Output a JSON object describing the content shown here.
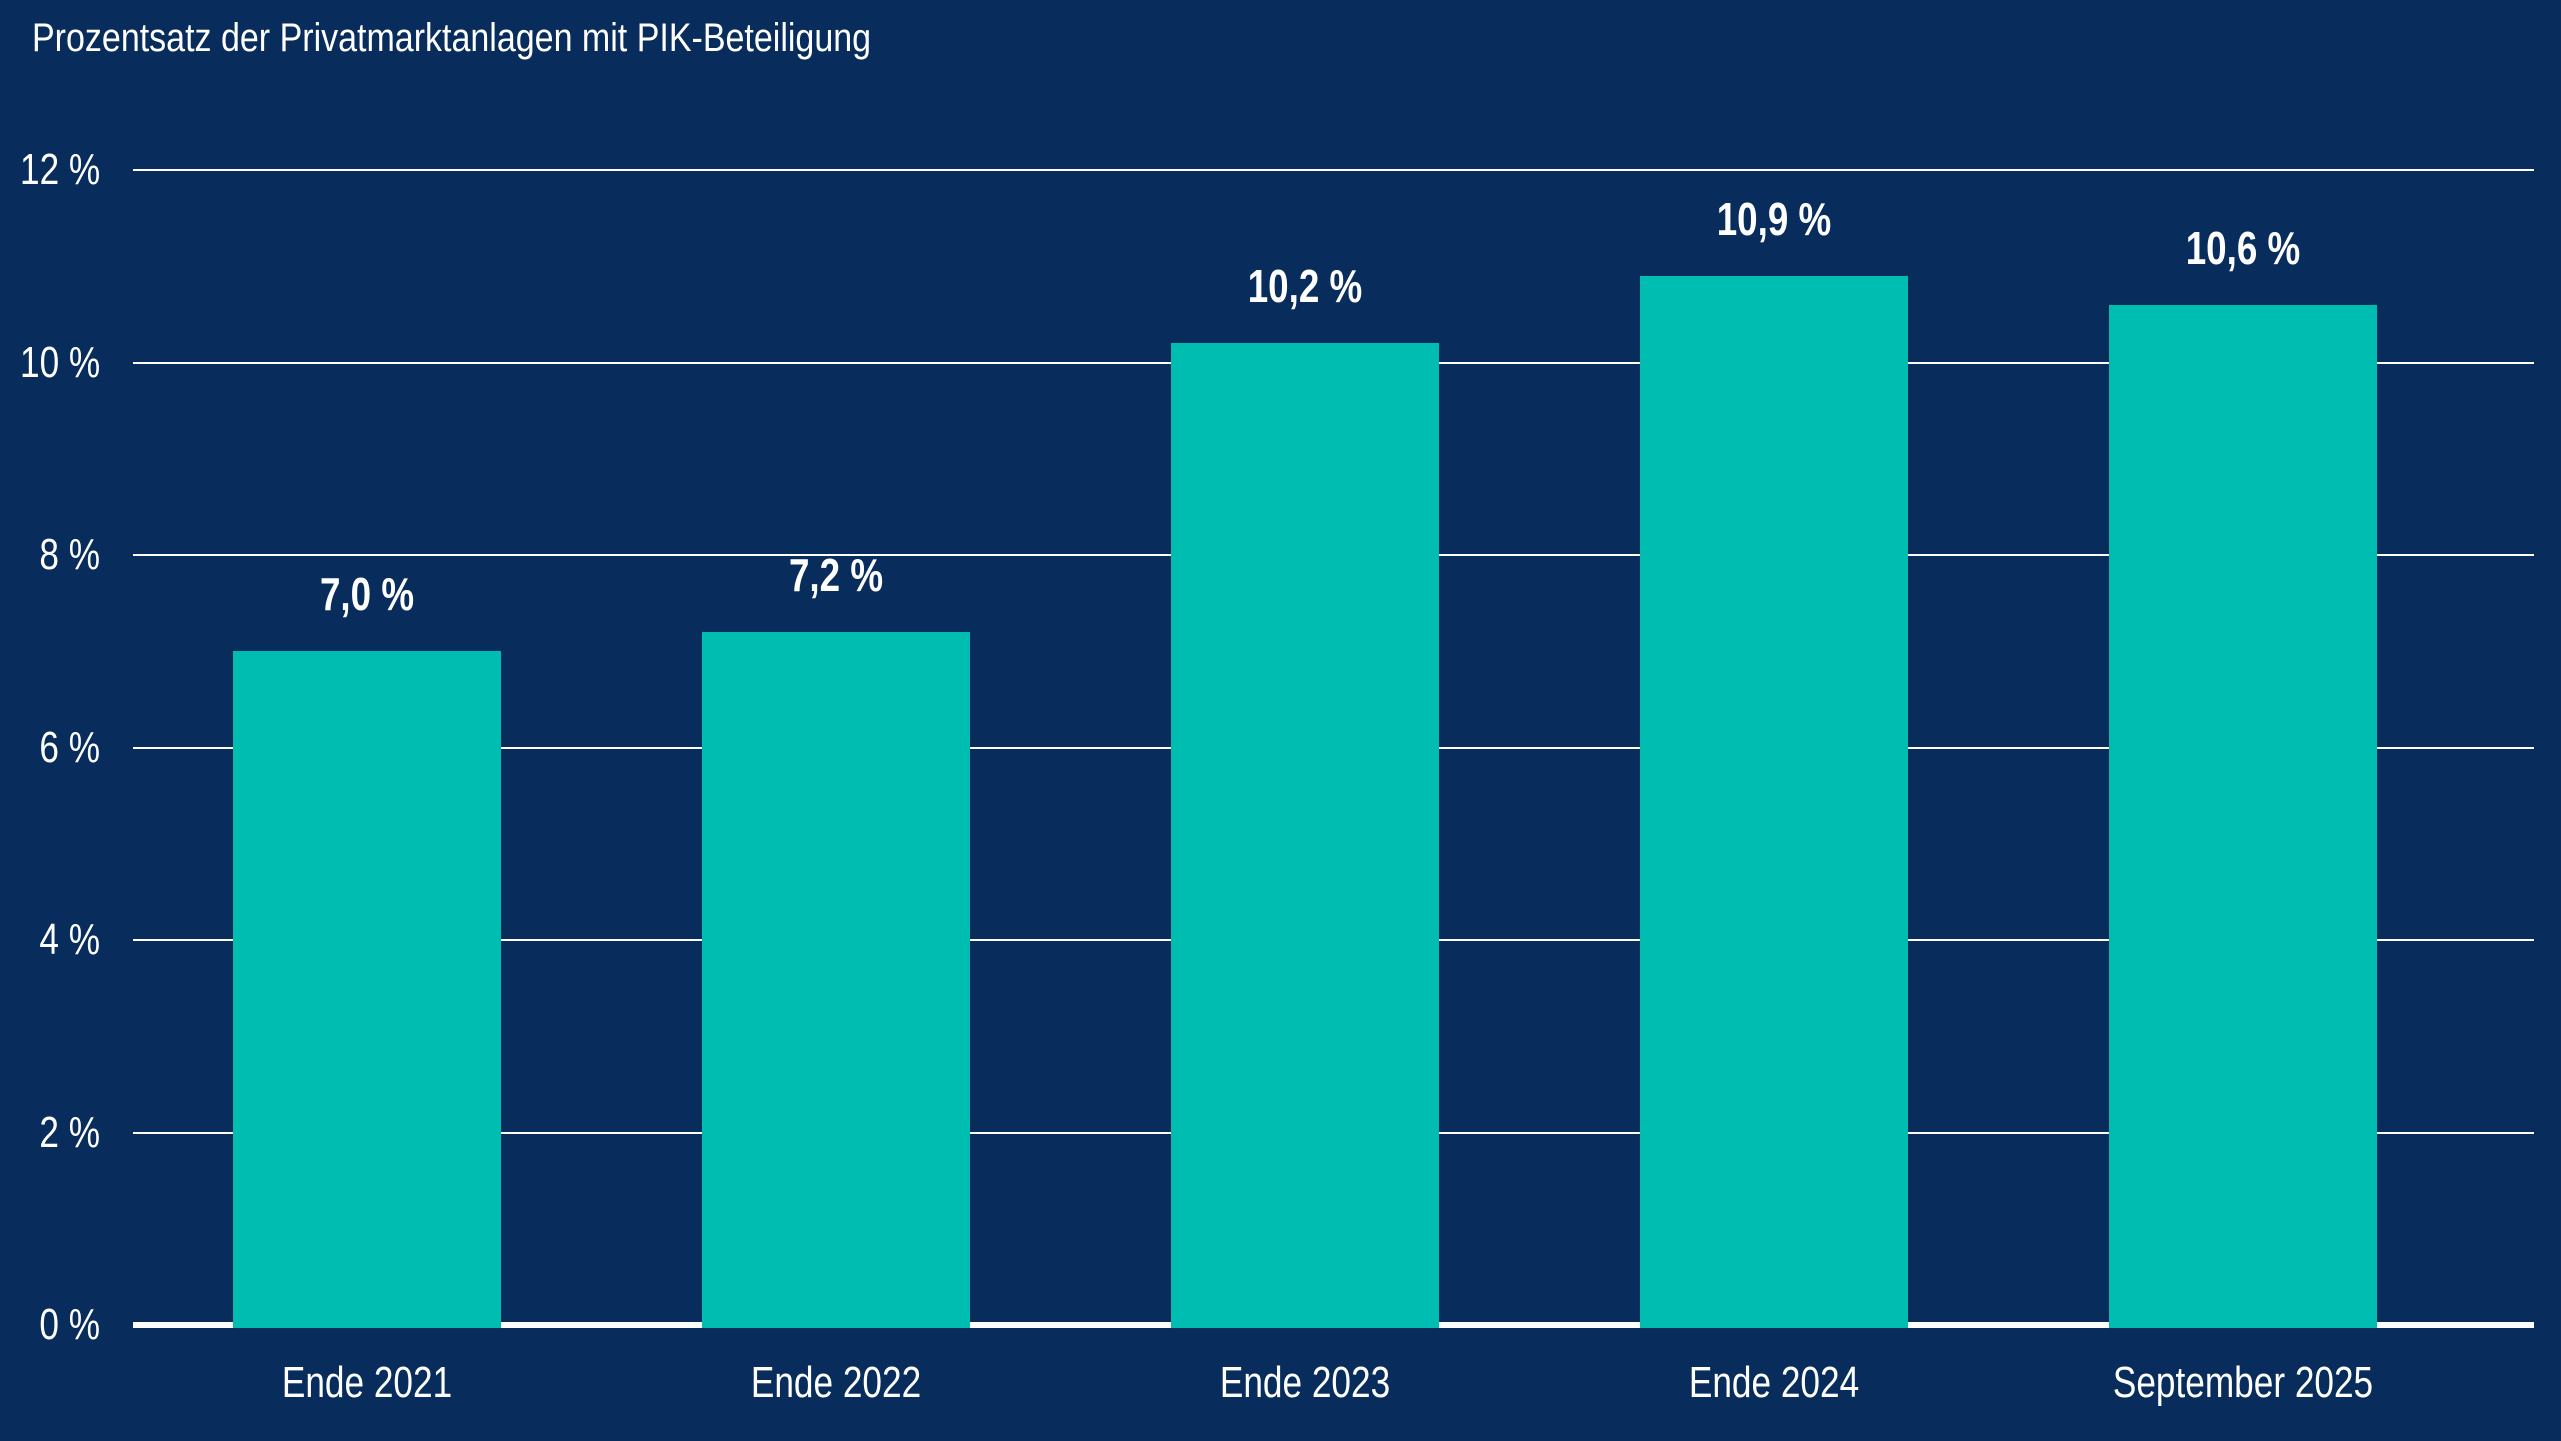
{
  "header": {
    "title": "Prozentsatz der Privatmarktanlagen mit PIK-Beteiligung"
  },
  "colors": {
    "background": "#082D5C",
    "bar": "#00BDB2",
    "text": "#FFFFFF",
    "gridline": "#FFFFFF"
  },
  "chart_data": {
    "type": "bar",
    "title": "Prozentsatz der Privatmarktanlagen mit PIK-Beteiligung",
    "categories": [
      "Ende 2021",
      "Ende 2022",
      "Ende 2023",
      "Ende 2024",
      "September 2025"
    ],
    "values": [
      7.0,
      7.2,
      10.2,
      10.9,
      10.6
    ],
    "value_labels": [
      "7,0 %",
      "7,2 %",
      "10,2 %",
      "10,9 %",
      "10,6 %"
    ],
    "xlabel": "",
    "ylabel": "",
    "ylim": [
      0,
      12
    ],
    "yticks": [
      0,
      2,
      4,
      6,
      8,
      10,
      12
    ],
    "ytick_labels": [
      "0 %",
      "2 %",
      "4 %",
      "6 %",
      "8 %",
      "10 %",
      "12 %"
    ],
    "grid": true,
    "legend": false,
    "gridline_interval": 2,
    "bar_color": "#00BDB2",
    "background_color": "#082D5C"
  }
}
